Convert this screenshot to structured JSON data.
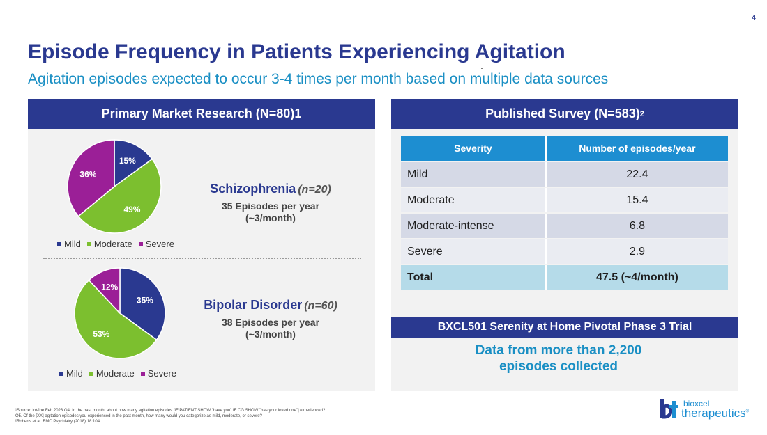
{
  "page_number": "4",
  "title": "Episode Frequency in Patients Experiencing Agitation",
  "subtitle": "Agitation episodes expected to occur 3-4 times per month based on multiple data sources",
  "colors": {
    "navy": "#2a3990",
    "accent_blue": "#1d8ed1",
    "mild": "#2a3990",
    "moderate": "#7cbf2f",
    "severe": "#9b1f97"
  },
  "left_panel": {
    "header": "Primary Market Research (N=80)1",
    "legend": [
      "Mild",
      "Moderate",
      "Severe"
    ]
  },
  "right_panel": {
    "header_main": "Published Survey (N=583)",
    "header_sup": "2"
  },
  "chart_data": [
    {
      "type": "pie",
      "title": "Schizophrenia (n=20)",
      "categories": [
        "Mild",
        "Moderate",
        "Severe"
      ],
      "values": [
        15,
        49,
        36
      ],
      "labels": [
        "15%",
        "49%",
        "36%"
      ],
      "legend": "bottom"
    },
    {
      "type": "pie",
      "title": "Bipolar Disorder (n=60)",
      "categories": [
        "Mild",
        "Moderate",
        "Severe"
      ],
      "values": [
        35,
        53,
        12
      ],
      "labels": [
        "35%",
        "53%",
        "12%"
      ],
      "legend": "bottom"
    }
  ],
  "schizophrenia": {
    "name": "Schizophrenia",
    "n": "(n=20)",
    "line1": "35 Episodes per year",
    "line2": "(~3/month)"
  },
  "bipolar": {
    "name": "Bipolar Disorder",
    "n": "(n=60)",
    "line1": "38 Episodes per year",
    "line2": "(~3/month)"
  },
  "survey_table": {
    "headers": [
      "Severity",
      "Number of episodes/year"
    ],
    "rows": [
      {
        "severity": "Mild",
        "value": "22.4"
      },
      {
        "severity": "Moderate",
        "value": "15.4"
      },
      {
        "severity": "Moderate-intense",
        "value": "6.8"
      },
      {
        "severity": "Severe",
        "value": "2.9"
      },
      {
        "severity": "Total",
        "value": "47.5 (~4/month)"
      }
    ]
  },
  "trial": {
    "header": "BXCL501 Serenity at Home Pivotal Phase 3 Trial",
    "line1": "Data from more than 2,200",
    "line2": "episodes collected"
  },
  "footnotes": [
    "¹Source: InVibe Feb 2023 Q4: In the past month, about how many agitation episodes [IF PATIENT SHOW \"have you\" IF CG SHOW \"has your loved one\"] experienced?",
    "Q5. Of the [XX] agitation episodes you experienced in the past month, how many would you categorize as mild, moderate, or severe?",
    "²Roberts et al. BMC Psychiatry (2018) 18:104"
  ],
  "logo": {
    "word1": "bioxcel",
    "word2": "therapeutics",
    "reg": "®"
  }
}
